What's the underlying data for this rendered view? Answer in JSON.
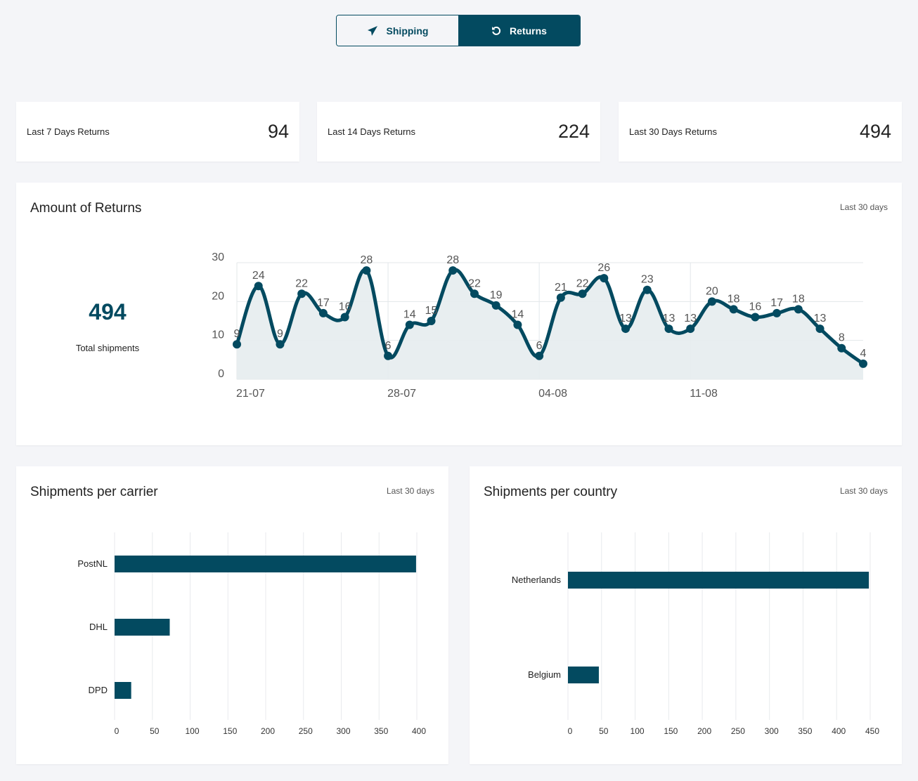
{
  "toggle": {
    "items": [
      {
        "label": "Shipping",
        "icon": "paper-plane-icon",
        "active": false
      },
      {
        "label": "Returns",
        "icon": "undo-icon",
        "active": true
      }
    ]
  },
  "stats": [
    {
      "label": "Last 7 Days Returns",
      "value": "94"
    },
    {
      "label": "Last 14 Days Returns",
      "value": "224"
    },
    {
      "label": "Last 30 Days Returns",
      "value": "494"
    }
  ],
  "returns_card": {
    "title": "Amount of Returns",
    "range": "Last 30 days",
    "total": "494",
    "total_label": "Total shipments"
  },
  "carrier_card": {
    "title": "Shipments per carrier",
    "range": "Last 30 days"
  },
  "country_card": {
    "title": "Shipments per country",
    "range": "Last 30 days"
  },
  "colors": {
    "primary": "#034a60",
    "area": "#e5ecee",
    "background": "#f4f5f8"
  },
  "chart_data": [
    {
      "type": "area",
      "x_ticks": [
        "21-07",
        "28-07",
        "04-08",
        "11-08"
      ],
      "y_ticks": [
        0,
        10,
        20,
        30
      ],
      "ylim": [
        0,
        30
      ],
      "grid": true,
      "x": [
        "21-07",
        "22-07",
        "23-07",
        "24-07",
        "25-07",
        "26-07",
        "27-07",
        "28-07",
        "29-07",
        "30-07",
        "31-07",
        "01-08",
        "02-08",
        "03-08",
        "04-08",
        "05-08",
        "06-08",
        "07-08",
        "08-08",
        "09-08",
        "10-08",
        "11-08",
        "12-08",
        "13-08",
        "14-08",
        "15-08",
        "16-08",
        "17-08",
        "18-08",
        "19-08"
      ],
      "values": [
        9,
        24,
        9,
        22,
        17,
        16,
        28,
        6,
        14,
        15,
        28,
        22,
        19,
        14,
        6,
        21,
        22,
        26,
        13,
        23,
        13,
        13,
        20,
        18,
        16,
        17,
        18,
        13,
        8,
        4
      ]
    },
    {
      "type": "bar",
      "orientation": "horizontal",
      "categories": [
        "PostNL",
        "DHL",
        "DPD"
      ],
      "values": [
        399,
        73,
        22
      ],
      "x_ticks": [
        0,
        50,
        100,
        150,
        200,
        250,
        300,
        350,
        400
      ],
      "xlim": [
        0,
        400
      ],
      "grid": true
    },
    {
      "type": "bar",
      "orientation": "horizontal",
      "categories": [
        "Netherlands",
        "Belgium"
      ],
      "values": [
        448,
        46
      ],
      "x_ticks": [
        0,
        50,
        100,
        150,
        200,
        250,
        300,
        350,
        400,
        450
      ],
      "xlim": [
        0,
        450
      ],
      "grid": true
    }
  ]
}
